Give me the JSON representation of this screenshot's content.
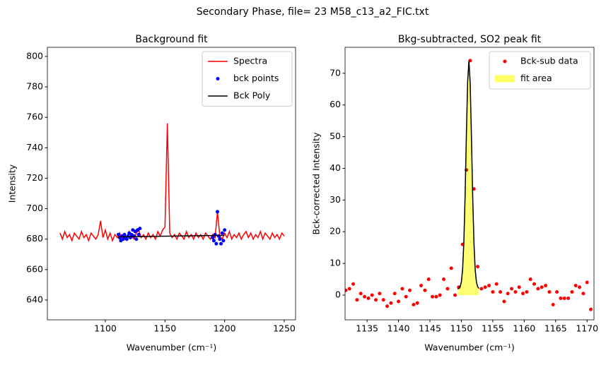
{
  "title": "Secondary Phase, file= 23 M58_c13_a2_FIC.txt",
  "chart_data": [
    {
      "type": "line",
      "title": "Background fit",
      "xlabel": "Wavenumber (cm⁻¹)",
      "ylabel": "Intensity",
      "xlim": [
        1051.4,
        1259.5
      ],
      "ylim": [
        627,
        806
      ],
      "xticks": [
        1100,
        1150,
        1200,
        1250
      ],
      "yticks": [
        640,
        660,
        680,
        700,
        720,
        740,
        760,
        780,
        800
      ],
      "legend": "upper right",
      "series": [
        {
          "name": "Spectra",
          "type": "line",
          "color": "#ff0000",
          "x": [
            1062,
            1064,
            1066,
            1068,
            1070,
            1072,
            1074,
            1076,
            1078,
            1080,
            1082,
            1084,
            1086,
            1088,
            1090,
            1092,
            1094,
            1096,
            1098,
            1100,
            1102,
            1104,
            1106,
            1108,
            1110,
            1112,
            1114,
            1116,
            1118,
            1120,
            1122,
            1124,
            1126,
            1128,
            1130,
            1132,
            1134,
            1136,
            1138,
            1140,
            1142,
            1144,
            1146,
            1148,
            1150,
            1152,
            1154,
            1156,
            1158,
            1160,
            1162,
            1164,
            1166,
            1168,
            1170,
            1172,
            1174,
            1176,
            1178,
            1180,
            1182,
            1184,
            1186,
            1188,
            1190,
            1192,
            1194,
            1196,
            1198,
            1200,
            1202,
            1204,
            1206,
            1208,
            1210,
            1212,
            1214,
            1216,
            1218,
            1220,
            1222,
            1224,
            1226,
            1228,
            1230,
            1232,
            1234,
            1236,
            1238,
            1240,
            1242,
            1244,
            1246,
            1248,
            1250
          ],
          "values": [
            684,
            680,
            685,
            681,
            683,
            679,
            684,
            682,
            680,
            685,
            681,
            683,
            679,
            684,
            682,
            680,
            683,
            692,
            681,
            686,
            680,
            684,
            679,
            683,
            681,
            684,
            680,
            683,
            681,
            685,
            682,
            680,
            684,
            686,
            681,
            683,
            680,
            684,
            681,
            683,
            680,
            685,
            682,
            686,
            688,
            756,
            684,
            681,
            683,
            680,
            684,
            682,
            680,
            685,
            681,
            683,
            680,
            684,
            681,
            683,
            680,
            684,
            682,
            680,
            683,
            681,
            698,
            682,
            680,
            684,
            681,
            685,
            680,
            683,
            681,
            684,
            680,
            683,
            685,
            681,
            684,
            680,
            683,
            681,
            685,
            680,
            684,
            682,
            680,
            684,
            681,
            683,
            680,
            684,
            682
          ]
        },
        {
          "name": "bck points",
          "type": "scatter",
          "color": "#0000ff",
          "x": [
            1111,
            1112,
            1113,
            1114,
            1115,
            1116,
            1117,
            1118,
            1119,
            1120,
            1121,
            1122,
            1123,
            1124,
            1125,
            1126,
            1127,
            1128,
            1129,
            1190,
            1191,
            1192,
            1193,
            1194,
            1195,
            1196,
            1197,
            1198,
            1199,
            1200
          ],
          "values": [
            683,
            681,
            679,
            682,
            680,
            683,
            681,
            680,
            682,
            684,
            681,
            683,
            686,
            682,
            685,
            680,
            686,
            683,
            687,
            681,
            679,
            683,
            677,
            698,
            682,
            680,
            677,
            684,
            679,
            686
          ]
        },
        {
          "name": "Bck Poly",
          "type": "line",
          "color": "#000000",
          "x": [
            1111,
            1200
          ],
          "values": [
            681.5,
            682.5
          ]
        }
      ]
    },
    {
      "type": "line",
      "title": "Bkg-subtracted, SO2 peak fit",
      "xlabel": "Wavenumber (cm⁻¹)",
      "ylabel": "Bck-corrected Intensity",
      "xlim": [
        1131.5,
        1171.1
      ],
      "ylim": [
        -7.8,
        78.2
      ],
      "xticks": [
        1135,
        1140,
        1145,
        1150,
        1155,
        1160,
        1165,
        1170
      ],
      "yticks": [
        0,
        10,
        20,
        30,
        40,
        50,
        60,
        70
      ],
      "legend": "upper right",
      "series": [
        {
          "name": "fit area",
          "type": "area",
          "color": "#ffff66",
          "x": [
            1149.4,
            1149.6,
            1149.8,
            1150.0,
            1150.2,
            1150.4,
            1150.6,
            1150.8,
            1151.0,
            1151.2,
            1151.4,
            1151.6,
            1151.8,
            1152.0,
            1152.2,
            1152.4,
            1152.6,
            1152.8
          ],
          "values": [
            2.0,
            2.1,
            2.6,
            4.1,
            8.1,
            16.8,
            31.6,
            50.5,
            67.2,
            74,
            67.2,
            50.5,
            31.6,
            16.8,
            8.1,
            4.1,
            2.6,
            2.1
          ]
        },
        {
          "name": "Bck-sub data",
          "type": "scatter",
          "color": "#ff0000",
          "x": [
            1131.6,
            1132.2,
            1132.8,
            1133.4,
            1134.0,
            1134.6,
            1135.2,
            1135.8,
            1136.4,
            1137.0,
            1137.6,
            1138.2,
            1138.8,
            1139.4,
            1140.0,
            1140.6,
            1141.2,
            1141.8,
            1142.4,
            1143.0,
            1143.6,
            1144.2,
            1144.8,
            1145.4,
            1146.0,
            1146.6,
            1147.2,
            1147.8,
            1148.4,
            1149.0,
            1149.6,
            1150.2,
            1150.8,
            1151.4,
            1152.0,
            1152.6,
            1153.2,
            1153.8,
            1154.4,
            1155.0,
            1155.6,
            1156.2,
            1156.8,
            1157.4,
            1158.0,
            1158.6,
            1159.2,
            1159.8,
            1160.4,
            1161.0,
            1161.6,
            1162.2,
            1162.8,
            1163.4,
            1164.0,
            1164.6,
            1165.2,
            1165.8,
            1166.4,
            1167.0,
            1167.6,
            1168.2,
            1168.8,
            1169.4,
            1170.0,
            1170.6
          ],
          "values": [
            1.5,
            2,
            3.5,
            -1.5,
            0.5,
            -0.5,
            -1,
            0,
            -1.5,
            0.5,
            -1.5,
            -3.5,
            -2.5,
            0.5,
            -2,
            2,
            -0.5,
            1.5,
            -3,
            -2.5,
            3,
            1.5,
            5,
            -0.5,
            -0.5,
            0,
            5,
            2,
            8.5,
            0,
            2.5,
            16,
            39.5,
            74,
            33.5,
            9,
            2,
            2.5,
            3,
            1,
            3.5,
            1,
            -2,
            0.5,
            2,
            1,
            2.5,
            0.5,
            1,
            5,
            3.5,
            2,
            2.5,
            3,
            1,
            -3,
            1,
            -1,
            -1,
            -1,
            1,
            3,
            2.5,
            0.5,
            4,
            -4.5
          ]
        },
        {
          "type": "line",
          "color": "#000000",
          "x": [
            1149.4,
            1149.6,
            1149.8,
            1150.0,
            1150.2,
            1150.4,
            1150.6,
            1150.8,
            1151.0,
            1151.2,
            1151.4,
            1151.6,
            1151.8,
            1152.0,
            1152.2,
            1152.4,
            1152.6,
            1152.8
          ],
          "values": [
            2.0,
            2.1,
            2.6,
            4.1,
            8.1,
            16.8,
            31.6,
            50.5,
            67.2,
            74,
            67.2,
            50.5,
            31.6,
            16.8,
            8.1,
            4.1,
            2.6,
            2.1
          ]
        }
      ]
    }
  ]
}
